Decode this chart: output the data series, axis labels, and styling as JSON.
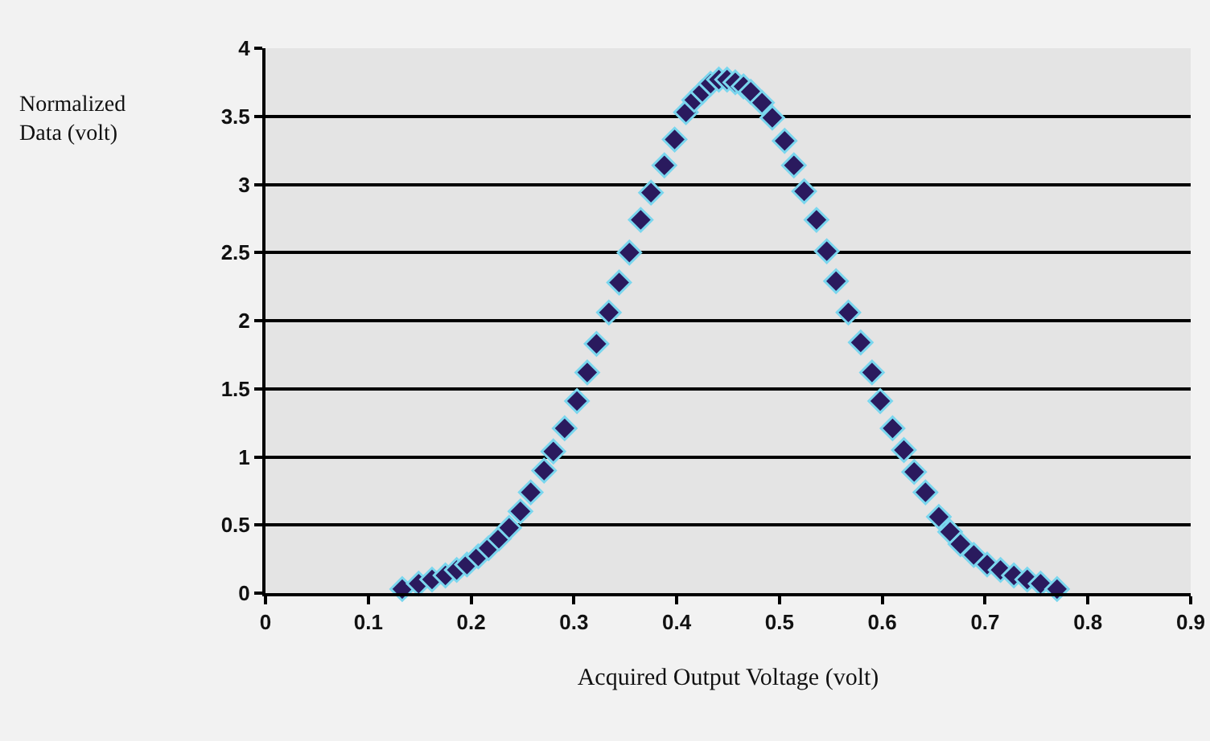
{
  "chart_data": {
    "type": "scatter",
    "xlabel": "Acquired Output Voltage (volt)",
    "ylabel": "Normalized Data (volt)",
    "x": [
      0.133,
      0.149,
      0.162,
      0.175,
      0.186,
      0.196,
      0.207,
      0.217,
      0.227,
      0.237,
      0.248,
      0.258,
      0.271,
      0.28,
      0.291,
      0.303,
      0.313,
      0.322,
      0.334,
      0.344,
      0.354,
      0.365,
      0.375,
      0.388,
      0.398,
      0.409,
      0.417,
      0.425,
      0.433,
      0.441,
      0.449,
      0.457,
      0.465,
      0.472,
      0.483,
      0.493,
      0.505,
      0.514,
      0.524,
      0.536,
      0.546,
      0.555,
      0.567,
      0.579,
      0.59,
      0.598,
      0.61,
      0.621,
      0.631,
      0.642,
      0.655,
      0.666,
      0.676,
      0.689,
      0.702,
      0.715,
      0.728,
      0.741,
      0.754,
      0.77
    ],
    "series": [
      {
        "color": "#2a1a5e",
        "values": [
          0.03,
          0.07,
          0.1,
          0.13,
          0.17,
          0.21,
          0.27,
          0.33,
          0.4,
          0.48,
          0.6,
          0.74,
          0.9,
          1.04,
          1.21,
          1.41,
          1.62,
          1.83,
          2.06,
          2.28,
          2.5,
          2.74,
          2.94,
          3.14,
          3.33,
          3.53,
          3.62,
          3.68,
          3.74,
          3.77,
          3.77,
          3.75,
          3.72,
          3.68,
          3.6,
          3.49,
          3.32,
          3.14,
          2.95,
          2.74,
          2.51,
          2.29,
          2.06,
          1.84,
          1.62,
          1.41,
          1.21,
          1.05,
          0.89,
          0.74,
          0.56,
          0.45,
          0.36,
          0.28,
          0.21,
          0.17,
          0.13,
          0.1,
          0.07,
          0.03
        ]
      }
    ],
    "xlim": [
      0,
      0.9
    ],
    "xticks": [
      0,
      0.1,
      0.2,
      0.3,
      0.4,
      0.5,
      0.6,
      0.7,
      0.8,
      0.9
    ],
    "ylim": [
      0,
      4
    ],
    "yticks": [
      0,
      0.5,
      1,
      1.5,
      2,
      2.5,
      3,
      3.5,
      4
    ],
    "grid": "y",
    "marker": "diamond"
  }
}
